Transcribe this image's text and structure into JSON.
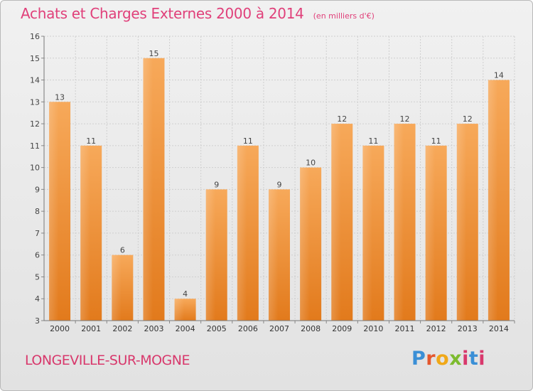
{
  "header": {
    "title": "Achats et Charges Externes 2000 à 2014",
    "subtitle": "(en milliers d'€)"
  },
  "footer": {
    "place": "LONGEVILLE-SUR-MOGNE",
    "logo_text": "Proxiti"
  },
  "colors": {
    "accent": "#e0407a",
    "bar_light": "#f7a95a",
    "bar_dark": "#e27a1c",
    "grid": "#cfcfcf"
  },
  "chart_data": {
    "type": "bar",
    "title": "Achats et Charges Externes 2000 à 2014",
    "subtitle": "(en milliers d'€)",
    "categories": [
      "2000",
      "2001",
      "2002",
      "2003",
      "2004",
      "2005",
      "2006",
      "2007",
      "2008",
      "2009",
      "2010",
      "2011",
      "2012",
      "2013",
      "2014"
    ],
    "values": [
      13,
      11,
      6,
      15,
      4,
      9,
      11,
      9,
      10,
      12,
      11,
      12,
      11,
      12,
      14
    ],
    "data_labels": [
      "13",
      "11",
      "6",
      "15",
      "4",
      "9",
      "11",
      "9",
      "10",
      "12",
      "11",
      "12",
      "11",
      "12",
      "14"
    ],
    "ylim": [
      3,
      16
    ],
    "yticks": [
      3,
      4,
      5,
      6,
      7,
      8,
      9,
      10,
      11,
      12,
      13,
      14,
      15,
      16
    ],
    "grid": true,
    "legend": "none"
  }
}
